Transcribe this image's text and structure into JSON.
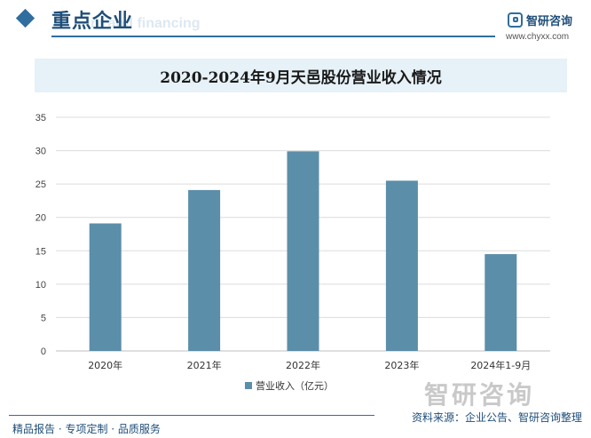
{
  "header": {
    "section_title": "重点企业",
    "ghost_text": "nt and financing",
    "brand_name": "智研咨询",
    "brand_url": "www.chyxx.com"
  },
  "footer": {
    "left_text": "精品报告 · 专项定制 · 品质服务",
    "right_text": "资料来源：企业公告、智研咨询整理",
    "watermark_text": "智研咨询"
  },
  "colors": {
    "bar": "#5b8ea8",
    "accent": "#2f6e9e",
    "title_band": "#e6f1f8"
  },
  "chart_data": {
    "type": "bar",
    "title": "2020-2024年9月天邑股份营业收入情况",
    "categories": [
      "2020年",
      "2021年",
      "2022年",
      "2023年",
      "2024年1-9月"
    ],
    "series": [
      {
        "name": "营业收入（亿元）",
        "values": [
          19.1,
          24.1,
          29.9,
          25.5,
          14.5
        ]
      }
    ],
    "ylim": [
      0,
      35
    ],
    "yticks": [
      0,
      5,
      10,
      15,
      20,
      25,
      30,
      35
    ],
    "grid": true,
    "legend_position": "bottom"
  }
}
